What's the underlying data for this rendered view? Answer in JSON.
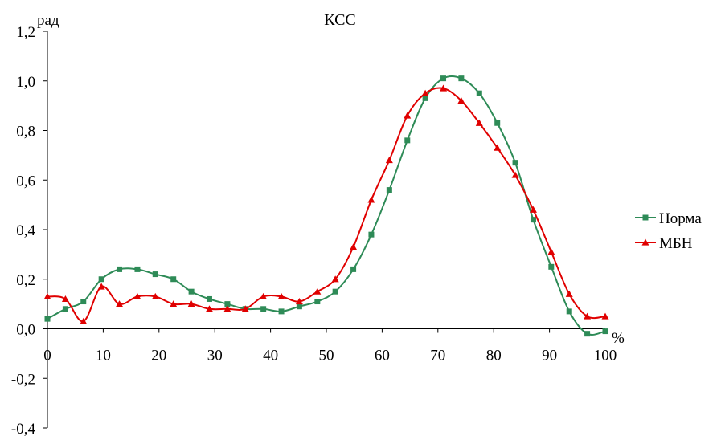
{
  "chart_data": {
    "type": "line",
    "title": "КСС",
    "ylabel": "рад",
    "xlabel": "%",
    "xlim": [
      0,
      100
    ],
    "ylim": [
      -0.4,
      1.2
    ],
    "x_ticks": [
      "0",
      "10",
      "20",
      "30",
      "40",
      "50",
      "60",
      "70",
      "80",
      "90",
      "100"
    ],
    "y_ticks": [
      "-0,4",
      "-0,2",
      "0,0",
      "0,2",
      "0,4",
      "0,6",
      "0,8",
      "1,0",
      "1,2"
    ],
    "legend_position": "right",
    "grid": false,
    "series": [
      {
        "name": "Норма",
        "color": "#2e8b57",
        "marker": "square",
        "x": [
          0,
          3.23,
          6.45,
          9.68,
          12.9,
          16.13,
          19.35,
          22.58,
          25.81,
          29.03,
          32.26,
          35.48,
          38.71,
          41.94,
          45.16,
          48.39,
          51.61,
          54.84,
          58.06,
          61.29,
          64.52,
          67.74,
          70.97,
          74.19,
          77.42,
          80.65,
          83.87,
          87.1,
          90.32,
          93.55,
          96.77,
          100
        ],
        "values": [
          0.04,
          0.08,
          0.11,
          0.2,
          0.24,
          0.24,
          0.22,
          0.2,
          0.15,
          0.12,
          0.1,
          0.08,
          0.08,
          0.07,
          0.09,
          0.11,
          0.15,
          0.24,
          0.38,
          0.56,
          0.76,
          0.93,
          1.01,
          1.01,
          0.95,
          0.83,
          0.67,
          0.44,
          0.25,
          0.07,
          -0.02,
          -0.01
        ]
      },
      {
        "name": "МБН",
        "color": "#e00000",
        "marker": "triangle",
        "x": [
          0,
          3.23,
          6.45,
          9.68,
          12.9,
          16.13,
          19.35,
          22.58,
          25.81,
          29.03,
          32.26,
          35.48,
          38.71,
          41.94,
          45.16,
          48.39,
          51.61,
          54.84,
          58.06,
          61.29,
          64.52,
          67.74,
          70.97,
          74.19,
          77.42,
          80.65,
          83.87,
          87.1,
          90.32,
          93.55,
          96.77,
          100
        ],
        "values": [
          0.13,
          0.12,
          0.03,
          0.17,
          0.1,
          0.13,
          0.13,
          0.1,
          0.1,
          0.08,
          0.08,
          0.08,
          0.13,
          0.13,
          0.11,
          0.15,
          0.2,
          0.33,
          0.52,
          0.68,
          0.86,
          0.95,
          0.97,
          0.92,
          0.83,
          0.73,
          0.62,
          0.48,
          0.31,
          0.14,
          0.05,
          0.05
        ]
      }
    ]
  }
}
